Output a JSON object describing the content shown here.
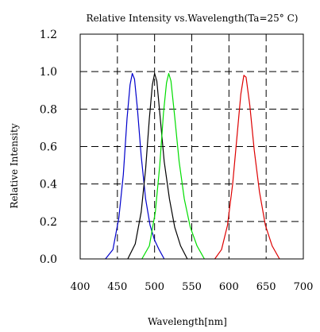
{
  "chart_data": {
    "type": "line",
    "title": "Relative Intensity vs.Wavelength(Ta=25° C)",
    "xlabel": "Wavelength[nm]",
    "ylabel": "Relative Intensity",
    "xlim": [
      400,
      700
    ],
    "ylim": [
      0,
      1.2
    ],
    "x_ticks": [
      "400",
      "450",
      "500",
      "550",
      "600",
      "650",
      "700"
    ],
    "y_ticks": [
      "0.0",
      "0.2",
      "0.4",
      "0.6",
      "0.8",
      "1.0",
      "1.2"
    ],
    "grid": "dashed",
    "series": [
      {
        "color": "#0000cc",
        "points": [
          [
            434,
            0.0
          ],
          [
            444,
            0.05
          ],
          [
            452,
            0.22
          ],
          [
            458,
            0.45
          ],
          [
            463,
            0.75
          ],
          [
            467,
            0.93
          ],
          [
            470,
            0.99
          ],
          [
            473,
            0.96
          ],
          [
            477,
            0.8
          ],
          [
            482,
            0.55
          ],
          [
            488,
            0.32
          ],
          [
            494,
            0.18
          ],
          [
            500,
            0.1
          ],
          [
            506,
            0.05
          ],
          [
            513,
            0.0
          ]
        ]
      },
      {
        "color": "#000000",
        "points": [
          [
            464,
            0.0
          ],
          [
            474,
            0.08
          ],
          [
            482,
            0.25
          ],
          [
            488,
            0.48
          ],
          [
            493,
            0.75
          ],
          [
            497,
            0.93
          ],
          [
            500,
            0.99
          ],
          [
            503,
            0.95
          ],
          [
            507,
            0.78
          ],
          [
            513,
            0.52
          ],
          [
            520,
            0.32
          ],
          [
            527,
            0.17
          ],
          [
            535,
            0.07
          ],
          [
            544,
            0.0
          ]
        ]
      },
      {
        "color": "#00dd00",
        "points": [
          [
            483,
            0.0
          ],
          [
            493,
            0.07
          ],
          [
            501,
            0.25
          ],
          [
            507,
            0.5
          ],
          [
            512,
            0.78
          ],
          [
            516,
            0.94
          ],
          [
            519,
            0.99
          ],
          [
            522,
            0.95
          ],
          [
            527,
            0.76
          ],
          [
            533,
            0.52
          ],
          [
            540,
            0.32
          ],
          [
            548,
            0.17
          ],
          [
            557,
            0.07
          ],
          [
            567,
            0.0
          ]
        ]
      },
      {
        "color": "#dd0000",
        "points": [
          [
            581,
            0.0
          ],
          [
            590,
            0.05
          ],
          [
            598,
            0.18
          ],
          [
            605,
            0.4
          ],
          [
            611,
            0.66
          ],
          [
            616,
            0.88
          ],
          [
            620,
            0.98
          ],
          [
            623,
            0.97
          ],
          [
            628,
            0.82
          ],
          [
            634,
            0.58
          ],
          [
            641,
            0.36
          ],
          [
            649,
            0.18
          ],
          [
            658,
            0.07
          ],
          [
            668,
            0.0
          ]
        ]
      }
    ]
  }
}
